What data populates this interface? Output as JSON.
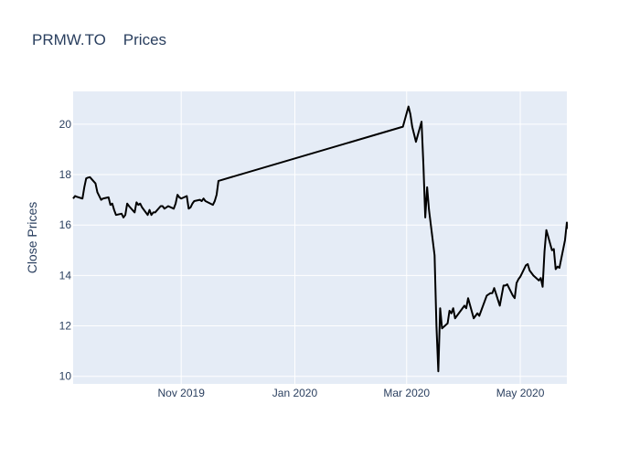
{
  "chart_data": {
    "type": "line",
    "title": "PRMW.TO    Prices",
    "xlabel": "",
    "ylabel": "Close Prices",
    "x_ticks": [
      "Nov 2019",
      "Jan 2020",
      "Mar 2020",
      "May 2020"
    ],
    "y_ticks": [
      "10",
      "12",
      "14",
      "16",
      "18",
      "20"
    ],
    "ylim": [
      9.7,
      21.3
    ],
    "xlim": [
      "2019-09-04",
      "2020-05-26"
    ],
    "grid": true,
    "legend": "none",
    "series": [
      {
        "name": "Close",
        "color": "#000000",
        "points": [
          [
            "2019-09-04",
            17.05
          ],
          [
            "2019-09-05",
            17.15
          ],
          [
            "2019-09-06",
            17.12
          ],
          [
            "2019-09-09",
            17.05
          ],
          [
            "2019-09-10",
            17.5
          ],
          [
            "2019-09-11",
            17.85
          ],
          [
            "2019-09-12",
            17.88
          ],
          [
            "2019-09-13",
            17.9
          ],
          [
            "2019-09-16",
            17.65
          ],
          [
            "2019-09-17",
            17.3
          ],
          [
            "2019-09-18",
            17.15
          ],
          [
            "2019-09-19",
            17.0
          ],
          [
            "2019-09-20",
            17.05
          ],
          [
            "2019-09-23",
            17.1
          ],
          [
            "2019-09-24",
            16.8
          ],
          [
            "2019-09-25",
            16.85
          ],
          [
            "2019-09-26",
            16.6
          ],
          [
            "2019-09-27",
            16.4
          ],
          [
            "2019-09-30",
            16.45
          ],
          [
            "2019-10-01",
            16.3
          ],
          [
            "2019-10-02",
            16.4
          ],
          [
            "2019-10-03",
            16.85
          ],
          [
            "2019-10-04",
            16.75
          ],
          [
            "2019-10-07",
            16.5
          ],
          [
            "2019-10-08",
            16.9
          ],
          [
            "2019-10-09",
            16.8
          ],
          [
            "2019-10-10",
            16.85
          ],
          [
            "2019-10-11",
            16.7
          ],
          [
            "2019-10-14",
            16.4
          ],
          [
            "2019-10-15",
            16.6
          ],
          [
            "2019-10-16",
            16.4
          ],
          [
            "2019-10-17",
            16.5
          ],
          [
            "2019-10-18",
            16.5
          ],
          [
            "2019-10-21",
            16.75
          ],
          [
            "2019-10-22",
            16.75
          ],
          [
            "2019-10-23",
            16.65
          ],
          [
            "2019-10-24",
            16.7
          ],
          [
            "2019-10-25",
            16.75
          ],
          [
            "2019-10-28",
            16.65
          ],
          [
            "2019-10-29",
            16.85
          ],
          [
            "2019-10-30",
            17.2
          ],
          [
            "2019-10-31",
            17.1
          ],
          [
            "2019-11-01",
            17.05
          ],
          [
            "2019-11-04",
            17.15
          ],
          [
            "2019-11-05",
            16.65
          ],
          [
            "2019-11-06",
            16.7
          ],
          [
            "2019-11-07",
            16.85
          ],
          [
            "2019-11-08",
            16.95
          ],
          [
            "2019-11-11",
            17.0
          ],
          [
            "2019-11-12",
            16.95
          ],
          [
            "2019-11-13",
            17.05
          ],
          [
            "2019-11-14",
            16.95
          ],
          [
            "2019-11-18",
            16.8
          ],
          [
            "2019-11-19",
            16.95
          ],
          [
            "2019-11-20",
            17.2
          ],
          [
            "2019-11-21",
            17.75
          ],
          [
            "2020-02-28",
            19.9
          ],
          [
            "2020-03-02",
            20.7
          ],
          [
            "2020-03-03",
            20.4
          ],
          [
            "2020-03-04",
            19.9
          ],
          [
            "2020-03-05",
            19.6
          ],
          [
            "2020-03-06",
            19.3
          ],
          [
            "2020-03-09",
            20.1
          ],
          [
            "2020-03-10",
            18.4
          ],
          [
            "2020-03-11",
            16.3
          ],
          [
            "2020-03-12",
            17.5
          ],
          [
            "2020-03-13",
            16.6
          ],
          [
            "2020-03-16",
            14.8
          ],
          [
            "2020-03-17",
            12.0
          ],
          [
            "2020-03-18",
            10.2
          ],
          [
            "2020-03-19",
            12.7
          ],
          [
            "2020-03-20",
            11.9
          ],
          [
            "2020-03-23",
            12.1
          ],
          [
            "2020-03-24",
            12.6
          ],
          [
            "2020-03-25",
            12.5
          ],
          [
            "2020-03-26",
            12.7
          ],
          [
            "2020-03-27",
            12.3
          ],
          [
            "2020-03-30",
            12.6
          ],
          [
            "2020-03-31",
            12.7
          ],
          [
            "2020-04-01",
            12.8
          ],
          [
            "2020-04-02",
            12.7
          ],
          [
            "2020-04-03",
            13.1
          ],
          [
            "2020-04-06",
            12.3
          ],
          [
            "2020-04-07",
            12.4
          ],
          [
            "2020-04-08",
            12.5
          ],
          [
            "2020-04-09",
            12.4
          ],
          [
            "2020-04-13",
            13.2
          ],
          [
            "2020-04-14",
            13.25
          ],
          [
            "2020-04-15",
            13.3
          ],
          [
            "2020-04-16",
            13.3
          ],
          [
            "2020-04-17",
            13.5
          ],
          [
            "2020-04-20",
            12.8
          ],
          [
            "2020-04-21",
            13.2
          ],
          [
            "2020-04-22",
            13.6
          ],
          [
            "2020-04-23",
            13.6
          ],
          [
            "2020-04-24",
            13.65
          ],
          [
            "2020-04-27",
            13.2
          ],
          [
            "2020-04-28",
            13.1
          ],
          [
            "2020-04-29",
            13.7
          ],
          [
            "2020-04-30",
            13.85
          ],
          [
            "2020-05-01",
            13.95
          ],
          [
            "2020-05-04",
            14.4
          ],
          [
            "2020-05-05",
            14.45
          ],
          [
            "2020-05-06",
            14.2
          ],
          [
            "2020-05-07",
            14.1
          ],
          [
            "2020-05-08",
            14.0
          ],
          [
            "2020-05-11",
            13.8
          ],
          [
            "2020-05-12",
            13.9
          ],
          [
            "2020-05-13",
            13.55
          ],
          [
            "2020-05-14",
            14.95
          ],
          [
            "2020-05-15",
            15.8
          ],
          [
            "2020-05-18",
            15.0
          ],
          [
            "2020-05-19",
            15.05
          ],
          [
            "2020-05-20",
            14.25
          ],
          [
            "2020-05-21",
            14.35
          ],
          [
            "2020-05-22",
            14.3
          ],
          [
            "2020-05-25",
            15.4
          ],
          [
            "2020-05-26",
            16.1
          ],
          [
            "2020-05-26",
            15.85
          ]
        ]
      }
    ]
  }
}
